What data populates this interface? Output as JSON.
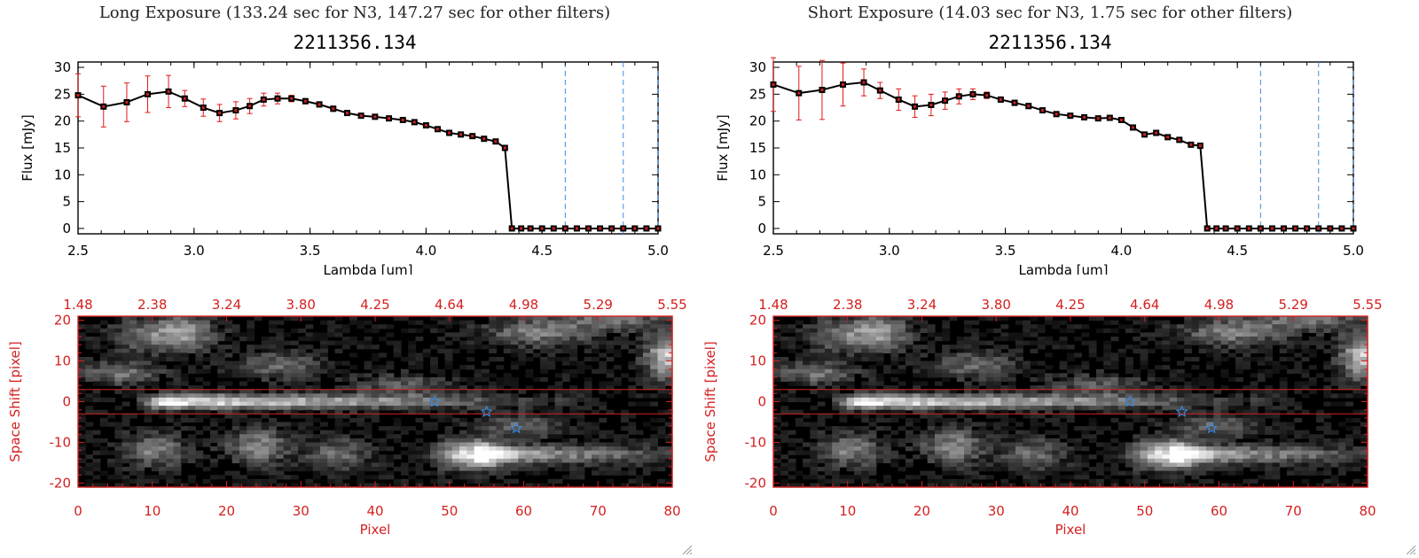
{
  "chart_data": [
    {
      "type": "line",
      "title": "Long Exposure (133.24 sec for N3, 147.27 sec for other filters)",
      "subtitle": "2211356.134",
      "xlabel": "Lambda [um]",
      "ylabel": "Flux [mJy]",
      "xlim": [
        2.5,
        5.0
      ],
      "ylim": [
        -1,
        31
      ],
      "x_ticks": [
        "2.5",
        "3.0",
        "3.5",
        "4.0",
        "4.5",
        "5.0"
      ],
      "y_ticks": [
        "0",
        "5",
        "10",
        "15",
        "20",
        "25",
        "30"
      ],
      "vlines": [
        4.6,
        4.85,
        5.0
      ],
      "series": [
        {
          "x": [
            2.5,
            2.61,
            2.71,
            2.8,
            2.89,
            2.96,
            3.04,
            3.11,
            3.18,
            3.24,
            3.3,
            3.36,
            3.42,
            3.48,
            3.54,
            3.6,
            3.66,
            3.72,
            3.78,
            3.84,
            3.9,
            3.95,
            4.0,
            4.05,
            4.1,
            4.15,
            4.2,
            4.25,
            4.3,
            4.34,
            4.37,
            4.41,
            4.45,
            4.5,
            4.55,
            4.6,
            4.65,
            4.7,
            4.75,
            4.8,
            4.85,
            4.9,
            4.95,
            5.0
          ],
          "y": [
            24.8,
            22.7,
            23.5,
            25.0,
            25.5,
            24.2,
            22.5,
            21.5,
            22.0,
            22.8,
            24.0,
            24.2,
            24.2,
            23.7,
            23.1,
            22.3,
            21.5,
            21.0,
            20.8,
            20.5,
            20.2,
            19.8,
            19.2,
            18.5,
            17.8,
            17.5,
            17.2,
            16.7,
            16.2,
            15.0,
            0,
            0,
            0,
            0,
            0,
            0,
            0,
            0,
            0,
            0,
            0,
            0,
            0,
            0
          ],
          "err": [
            4.0,
            3.8,
            3.6,
            3.4,
            3.0,
            1.5,
            1.6,
            1.6,
            1.6,
            1.4,
            1.2,
            1.0,
            0.6,
            0.5,
            0.5,
            0.5,
            0.4,
            0.4,
            0.4,
            0.4,
            0.4,
            0.4,
            0.4,
            0.4,
            0.4,
            0.4,
            0.4,
            0.4,
            0.4,
            0.5,
            0,
            0,
            0,
            0,
            0,
            0,
            0,
            0,
            0,
            0,
            0,
            0,
            0,
            0
          ]
        }
      ]
    },
    {
      "type": "line",
      "title": "Short Exposure (14.03 sec for N3, 1.75 sec for other filters)",
      "subtitle": "2211356.134",
      "xlabel": "Lambda [um]",
      "ylabel": "Flux [mJy]",
      "xlim": [
        2.5,
        5.0
      ],
      "ylim": [
        -1,
        31
      ],
      "x_ticks": [
        "2.5",
        "3.0",
        "3.5",
        "4.0",
        "4.5",
        "5.0"
      ],
      "y_ticks": [
        "0",
        "5",
        "10",
        "15",
        "20",
        "25",
        "30"
      ],
      "vlines": [
        4.6,
        4.85,
        5.0
      ],
      "series": [
        {
          "x": [
            2.5,
            2.61,
            2.71,
            2.8,
            2.89,
            2.96,
            3.04,
            3.11,
            3.18,
            3.24,
            3.3,
            3.36,
            3.42,
            3.48,
            3.54,
            3.6,
            3.66,
            3.72,
            3.78,
            3.84,
            3.9,
            3.95,
            4.0,
            4.05,
            4.1,
            4.15,
            4.2,
            4.25,
            4.3,
            4.34,
            4.37,
            4.41,
            4.45,
            4.5,
            4.55,
            4.6,
            4.65,
            4.7,
            4.75,
            4.8,
            4.85,
            4.9,
            4.95,
            5.0
          ],
          "y": [
            26.8,
            25.2,
            25.8,
            26.8,
            27.2,
            25.7,
            24.0,
            22.7,
            23.0,
            23.8,
            24.6,
            25.0,
            24.8,
            24.0,
            23.4,
            22.8,
            22.0,
            21.3,
            21.0,
            20.7,
            20.5,
            20.6,
            20.2,
            18.8,
            17.5,
            17.8,
            17.0,
            16.5,
            15.6,
            15.4,
            0,
            0,
            0,
            0,
            0,
            0,
            0,
            0,
            0,
            0,
            0,
            0,
            0,
            0
          ],
          "err": [
            5.0,
            5.0,
            5.5,
            4.0,
            2.5,
            1.5,
            2.0,
            2.0,
            2.0,
            1.6,
            1.4,
            1.0,
            0.6,
            0.5,
            0.5,
            0.5,
            0.4,
            0.4,
            0.4,
            0.4,
            0.4,
            0.4,
            0.4,
            0.4,
            0.4,
            0.4,
            0.4,
            0.4,
            0.4,
            0.5,
            0,
            0,
            0,
            0,
            0,
            0,
            0,
            0,
            0,
            0,
            0,
            0,
            0,
            0
          ]
        }
      ]
    },
    {
      "type": "heatmap",
      "xlabel": "Pixel",
      "ylabel": "Space Shift [pixel]",
      "xlim": [
        0,
        80
      ],
      "ylim": [
        -21,
        21
      ],
      "x_ticks": [
        "0",
        "10",
        "20",
        "30",
        "40",
        "50",
        "60",
        "70",
        "80"
      ],
      "y_ticks": [
        "-20",
        "-10",
        "0",
        "10",
        "20"
      ],
      "top_ticks": [
        "1.48",
        "2.38",
        "3.24",
        "3.80",
        "4.25",
        "4.64",
        "4.98",
        "5.29",
        "5.55"
      ],
      "hlines": [
        3,
        -3
      ],
      "star_markers": [
        {
          "x": 48,
          "y": 0
        },
        {
          "x": 55,
          "y": -2.5
        },
        {
          "x": 59,
          "y": -6.5
        }
      ]
    },
    {
      "type": "heatmap",
      "xlabel": "Pixel",
      "ylabel": "Space Shift [pixel]",
      "xlim": [
        0,
        80
      ],
      "ylim": [
        -21,
        21
      ],
      "x_ticks": [
        "0",
        "10",
        "20",
        "30",
        "40",
        "50",
        "60",
        "70",
        "80"
      ],
      "y_ticks": [
        "-20",
        "-10",
        "0",
        "10",
        "20"
      ],
      "top_ticks": [
        "1.48",
        "2.38",
        "3.24",
        "3.80",
        "4.25",
        "4.64",
        "4.98",
        "5.29",
        "5.55"
      ],
      "hlines": [
        3,
        -3
      ],
      "star_markers": [
        {
          "x": 48,
          "y": 0
        },
        {
          "x": 55,
          "y": -2.5
        },
        {
          "x": 59,
          "y": -6.5
        }
      ]
    }
  ]
}
